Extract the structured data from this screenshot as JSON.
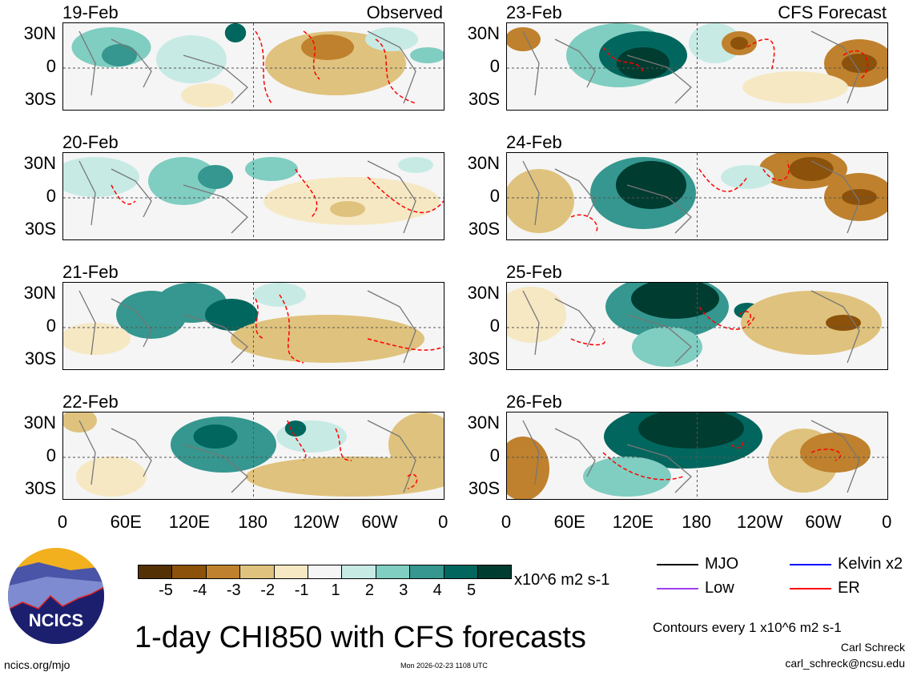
{
  "panels_left": {
    "tag": "Observed",
    "dates": [
      "19-Feb",
      "20-Feb",
      "21-Feb",
      "22-Feb"
    ]
  },
  "panels_right": {
    "tag": "CFS Forecast",
    "dates": [
      "23-Feb",
      "24-Feb",
      "25-Feb",
      "26-Feb"
    ]
  },
  "y_ticks": [
    "30N",
    "0",
    "30S"
  ],
  "x_ticks": [
    "0",
    "60E",
    "120E",
    "180",
    "120W",
    "60W",
    "0"
  ],
  "colorbar": {
    "labels": [
      "-5",
      "-4",
      "-3",
      "-2",
      "-1",
      "1",
      "2",
      "3",
      "4",
      "5"
    ],
    "colors": [
      "#543005",
      "#8c510a",
      "#bf812d",
      "#dfc27d",
      "#f6e8c3",
      "#f5f5f5",
      "#c7eae5",
      "#80cdc1",
      "#35978f",
      "#01665e",
      "#003c30"
    ],
    "units": "x10^6 m2 s-1"
  },
  "legend": {
    "items": [
      {
        "label": "MJO",
        "color": "#000000"
      },
      {
        "label": "Kelvin x2",
        "color": "#0000ff"
      },
      {
        "label": "Low",
        "color": "#a040f0"
      },
      {
        "label": "ER",
        "color": "#ff0000"
      }
    ],
    "contours": "Contours every 1 x10^6 m2 s-1"
  },
  "title": "1-day CHI850 with CFS forecasts",
  "author": "Carl Schreck",
  "email": "carl_schreck@ncsu.edu",
  "url": "ncics.org/mjo",
  "timestamp": "Mon 2026-02-23 1108 UTC",
  "logo": {
    "text": "NCICS"
  }
}
